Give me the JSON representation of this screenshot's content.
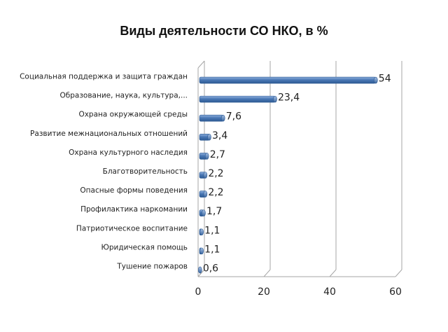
{
  "chart_data": {
    "type": "bar",
    "orientation": "horizontal",
    "title": "Виды деятельности СО НКО, в %",
    "categories": [
      "Социальная поддержка и защита граждан",
      "Образование, наука, культура,...",
      "Охрана окружающей среды",
      "Развитие межнациональных отношений",
      "Охрана культурного наследия",
      "Благотворительность",
      "Опасные формы поведения",
      "Профилактика наркомании",
      "Патриотическое воспитание",
      "Юридическая помощь",
      "Тушение пожаров"
    ],
    "values": [
      54,
      23.4,
      7.6,
      3.4,
      2.7,
      2.2,
      2.2,
      1.7,
      1.1,
      1.1,
      0.6
    ],
    "value_labels": [
      "54",
      "23,4",
      "7,6",
      "3,4",
      "2,7",
      "2,2",
      "2,2",
      "1,7",
      "1,1",
      "1,1",
      "0,6"
    ],
    "xticks": [
      "0",
      "20",
      "40",
      "60"
    ],
    "xlim": [
      0,
      60
    ],
    "grid": true,
    "bar_color": "#4a78b5",
    "legend": "none"
  }
}
